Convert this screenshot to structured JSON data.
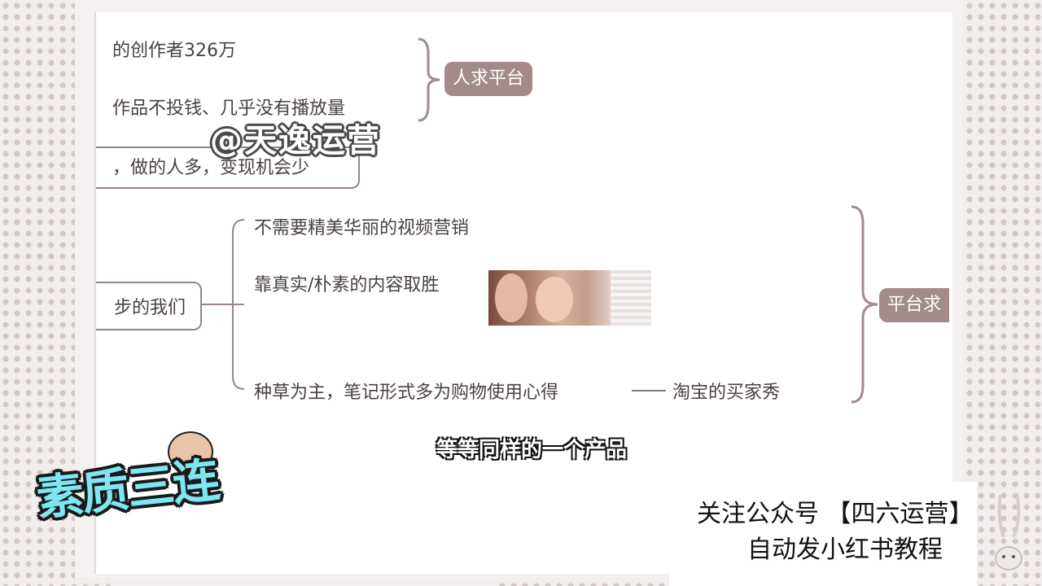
{
  "mindmap": {
    "top_items": [
      "的创作者326万",
      "作品不投钱、几乎没有播放量",
      "，做的人多，变现机会少"
    ],
    "tag_top": "人求平台",
    "left_node": "步的我们",
    "branches": [
      "不需要精美华丽的视频营销",
      "靠真实/朴素的内容取胜",
      "种草为主，笔记形式多为购物使用心得"
    ],
    "branch_suffix": "淘宝的买家秀",
    "tag_right": "平台求"
  },
  "watermark": "@天逸运营",
  "subtitle": "等等同样的一个产品",
  "promo": {
    "line1": "关注公众号 【四六运营】",
    "line2": "自动发小红书教程"
  },
  "sticker": "素质三连"
}
